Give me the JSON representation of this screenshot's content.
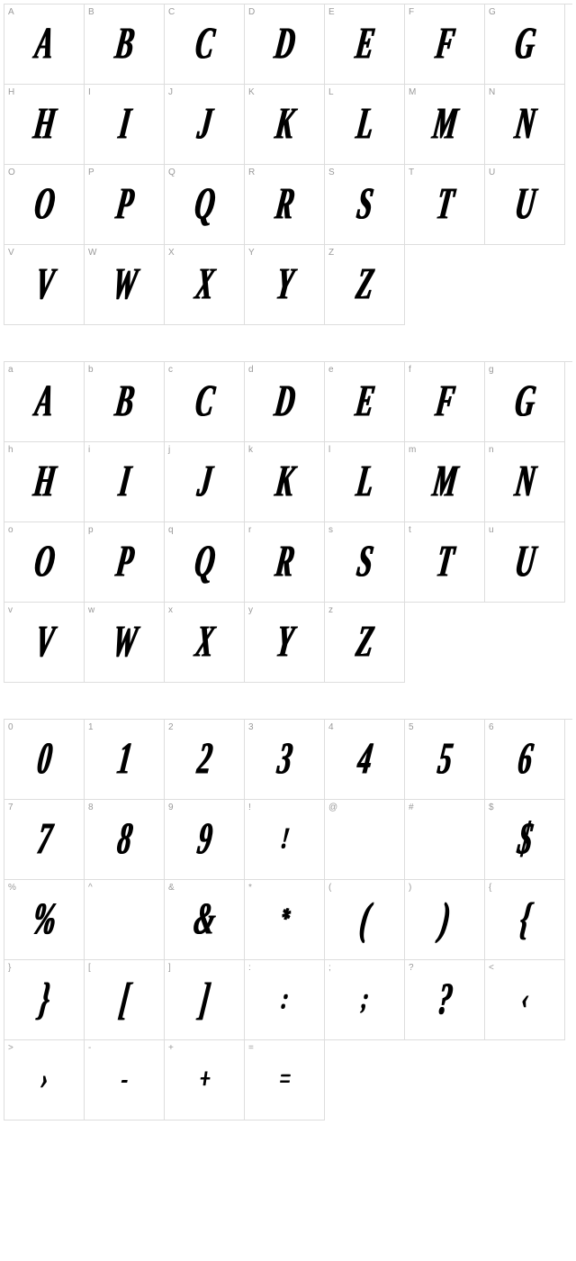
{
  "grid_config": {
    "columns": 7,
    "cell_size": 89,
    "border_color": "#dddddd",
    "label_color": "#999999",
    "label_fontsize": 10,
    "glyph_color": "#000000",
    "glyph_fontsize": 42,
    "background_color": "#ffffff",
    "section_gap": 40
  },
  "sections": [
    {
      "id": "uppercase",
      "cells": [
        {
          "label": "A",
          "glyph": "A"
        },
        {
          "label": "B",
          "glyph": "B"
        },
        {
          "label": "C",
          "glyph": "C"
        },
        {
          "label": "D",
          "glyph": "D"
        },
        {
          "label": "E",
          "glyph": "E"
        },
        {
          "label": "F",
          "glyph": "F"
        },
        {
          "label": "G",
          "glyph": "G"
        },
        {
          "label": "H",
          "glyph": "H"
        },
        {
          "label": "I",
          "glyph": "I"
        },
        {
          "label": "J",
          "glyph": "J"
        },
        {
          "label": "K",
          "glyph": "K"
        },
        {
          "label": "L",
          "glyph": "L"
        },
        {
          "label": "M",
          "glyph": "M"
        },
        {
          "label": "N",
          "glyph": "N"
        },
        {
          "label": "O",
          "glyph": "O"
        },
        {
          "label": "P",
          "glyph": "P"
        },
        {
          "label": "Q",
          "glyph": "Q"
        },
        {
          "label": "R",
          "glyph": "R"
        },
        {
          "label": "S",
          "glyph": "S"
        },
        {
          "label": "T",
          "glyph": "T"
        },
        {
          "label": "U",
          "glyph": "U"
        },
        {
          "label": "V",
          "glyph": "V"
        },
        {
          "label": "W",
          "glyph": "W"
        },
        {
          "label": "X",
          "glyph": "X"
        },
        {
          "label": "Y",
          "glyph": "Y"
        },
        {
          "label": "Z",
          "glyph": "Z"
        }
      ],
      "total_slots": 28
    },
    {
      "id": "lowercase",
      "cells": [
        {
          "label": "a",
          "glyph": "A"
        },
        {
          "label": "b",
          "glyph": "B"
        },
        {
          "label": "c",
          "glyph": "C"
        },
        {
          "label": "d",
          "glyph": "D"
        },
        {
          "label": "e",
          "glyph": "E"
        },
        {
          "label": "f",
          "glyph": "F"
        },
        {
          "label": "g",
          "glyph": "G"
        },
        {
          "label": "h",
          "glyph": "H"
        },
        {
          "label": "i",
          "glyph": "I"
        },
        {
          "label": "j",
          "glyph": "J"
        },
        {
          "label": "k",
          "glyph": "K"
        },
        {
          "label": "l",
          "glyph": "L"
        },
        {
          "label": "m",
          "glyph": "M"
        },
        {
          "label": "n",
          "glyph": "N"
        },
        {
          "label": "o",
          "glyph": "O"
        },
        {
          "label": "p",
          "glyph": "P"
        },
        {
          "label": "q",
          "glyph": "Q"
        },
        {
          "label": "r",
          "glyph": "R"
        },
        {
          "label": "s",
          "glyph": "S"
        },
        {
          "label": "t",
          "glyph": "T"
        },
        {
          "label": "u",
          "glyph": "U"
        },
        {
          "label": "v",
          "glyph": "V"
        },
        {
          "label": "w",
          "glyph": "W"
        },
        {
          "label": "x",
          "glyph": "X"
        },
        {
          "label": "y",
          "glyph": "Y"
        },
        {
          "label": "z",
          "glyph": "Z"
        }
      ],
      "total_slots": 28
    },
    {
      "id": "symbols",
      "cells": [
        {
          "label": "0",
          "glyph": "0"
        },
        {
          "label": "1",
          "glyph": "1"
        },
        {
          "label": "2",
          "glyph": "2"
        },
        {
          "label": "3",
          "glyph": "3"
        },
        {
          "label": "4",
          "glyph": "4"
        },
        {
          "label": "5",
          "glyph": "5"
        },
        {
          "label": "6",
          "glyph": "6"
        },
        {
          "label": "7",
          "glyph": "7"
        },
        {
          "label": "8",
          "glyph": "8"
        },
        {
          "label": "9",
          "glyph": "9"
        },
        {
          "label": "!",
          "glyph": "!",
          "size": "small"
        },
        {
          "label": "@",
          "glyph": ""
        },
        {
          "label": "#",
          "glyph": ""
        },
        {
          "label": "$",
          "glyph": "$"
        },
        {
          "label": "%",
          "glyph": "%"
        },
        {
          "label": "^",
          "glyph": ""
        },
        {
          "label": "&",
          "glyph": "&"
        },
        {
          "label": "*",
          "glyph": "*",
          "size": "small"
        },
        {
          "label": "(",
          "glyph": "("
        },
        {
          "label": ")",
          "glyph": ")"
        },
        {
          "label": "{",
          "glyph": "{"
        },
        {
          "label": "}",
          "glyph": "}"
        },
        {
          "label": "[",
          "glyph": "["
        },
        {
          "label": "]",
          "glyph": "]"
        },
        {
          "label": ":",
          "glyph": ":",
          "size": "small"
        },
        {
          "label": ";",
          "glyph": ";",
          "size": "small"
        },
        {
          "label": "?",
          "glyph": "?"
        },
        {
          "label": "<",
          "glyph": "‹",
          "size": "small"
        },
        {
          "label": ">",
          "glyph": "›",
          "size": "small"
        },
        {
          "label": "-",
          "glyph": "-",
          "size": "small"
        },
        {
          "label": "+",
          "glyph": "+",
          "size": "small"
        },
        {
          "label": "=",
          "glyph": "=",
          "size": "small"
        }
      ],
      "total_slots": 35
    }
  ]
}
